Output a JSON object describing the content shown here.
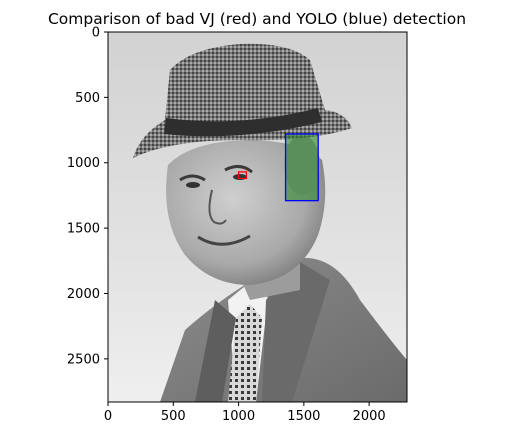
{
  "chart_data": {
    "type": "image",
    "title": "Comparison of bad VJ (red) and YOLO (blue) detection",
    "xlim": [
      0,
      2290
    ],
    "ylim": [
      2830,
      0
    ],
    "xticks": [
      0,
      500,
      1000,
      1500,
      2000
    ],
    "yticks": [
      0,
      500,
      1000,
      1500,
      2000,
      2500
    ],
    "image_subject": "grayscale portrait of a smiling man in a houndstooth hat, suit and patterned tie",
    "detections": [
      {
        "detector": "YOLO",
        "color": "#0000ff",
        "x0": 1360,
        "y0": 780,
        "x1": 1610,
        "y1": 1290
      },
      {
        "detector": "VJ",
        "color": "#ff0000",
        "x0": 1000,
        "y0": 1070,
        "x1": 1060,
        "y1": 1120
      }
    ],
    "highlight": {
      "color": "#2e8b2e",
      "opacity": 0.6,
      "x0": 1360,
      "y0": 780,
      "x1": 1610,
      "y1": 1290
    }
  }
}
